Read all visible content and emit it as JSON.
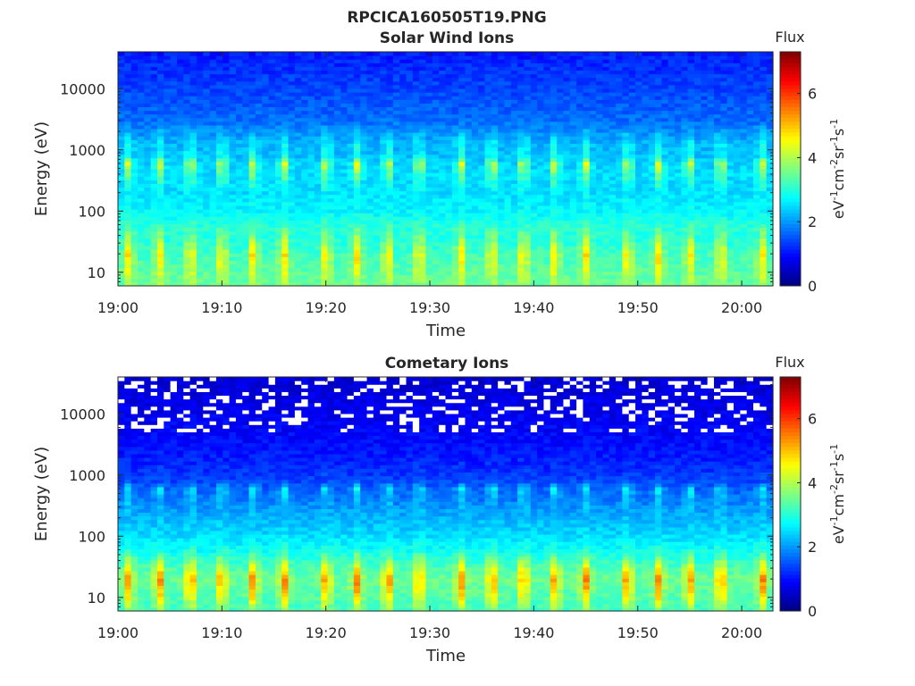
{
  "figure_title": "RPCICA160505T19.PNG",
  "chart_data": [
    {
      "type": "heatmap",
      "title": "Solar Wind Ions",
      "xlabel": "Time",
      "ylabel": "Energy (eV)",
      "x_ticks": [
        "19:00",
        "19:10",
        "19:20",
        "19:30",
        "19:40",
        "19:50",
        "20:00"
      ],
      "x_range": [
        "19:00",
        "20:03"
      ],
      "y_scale": "log",
      "y_ticks": [
        10,
        100,
        1000,
        10000
      ],
      "y_tick_labels": [
        "10",
        "100",
        "1000",
        "10000"
      ],
      "y_range": [
        6,
        40000
      ],
      "colorbar": {
        "title": "Flux",
        "label": "eV-1cm-2sr-1s-1",
        "range": [
          0,
          7.3
        ],
        "ticks": [
          0,
          2,
          4,
          6
        ],
        "tick_labels": [
          "0",
          "2",
          "4",
          "6"
        ],
        "colormap": "jet"
      },
      "pulse_times": [
        "19:01",
        "19:04",
        "19:07",
        "19:10",
        "19:13",
        "19:16",
        "19:20",
        "19:23",
        "19:26",
        "19:29",
        "19:33",
        "19:36",
        "19:39",
        "19:42",
        "19:45",
        "19:49",
        "19:52",
        "19:55",
        "19:58",
        "20:02"
      ],
      "profile": {
        "energy_eV": [
          6,
          10,
          20,
          30,
          60,
          100,
          200,
          400,
          600,
          800,
          1300,
          3000,
          10000,
          40000
        ],
        "flux_background": [
          3.5,
          3.4,
          3.2,
          3.0,
          3.0,
          2.7,
          2.5,
          2.5,
          2.4,
          2.3,
          2.2,
          1.7,
          1.4,
          1.1
        ],
        "flux_pulse": [
          3.9,
          4.4,
          4.9,
          4.3,
          3.2,
          2.8,
          2.7,
          3.6,
          4.5,
          3.0,
          2.8,
          1.7,
          1.4,
          1.1
        ]
      },
      "gaps": "none"
    },
    {
      "type": "heatmap",
      "title": "Cometary Ions",
      "xlabel": "Time",
      "ylabel": "Energy (eV)",
      "x_ticks": [
        "19:00",
        "19:10",
        "19:20",
        "19:30",
        "19:40",
        "19:50",
        "20:00"
      ],
      "x_range": [
        "19:00",
        "20:03"
      ],
      "y_scale": "log",
      "y_ticks": [
        10,
        100,
        1000,
        10000
      ],
      "y_tick_labels": [
        "10",
        "100",
        "1000",
        "10000"
      ],
      "y_range": [
        6,
        40000
      ],
      "colorbar": {
        "title": "Flux",
        "label": "eV-1cm-2sr-1s-1",
        "range": [
          0,
          7.3
        ],
        "ticks": [
          0,
          2,
          4,
          6
        ],
        "tick_labels": [
          "0",
          "2",
          "4",
          "6"
        ],
        "colormap": "jet"
      },
      "pulse_times": [
        "19:01",
        "19:04",
        "19:07",
        "19:10",
        "19:13",
        "19:16",
        "19:20",
        "19:23",
        "19:26",
        "19:29",
        "19:33",
        "19:36",
        "19:39",
        "19:42",
        "19:45",
        "19:49",
        "19:52",
        "19:55",
        "19:58",
        "20:02"
      ],
      "profile": {
        "energy_eV": [
          6,
          10,
          20,
          30,
          60,
          100,
          200,
          400,
          600,
          800,
          1300,
          3000,
          10000,
          40000
        ],
        "flux_background": [
          3.2,
          3.3,
          3.5,
          3.3,
          2.8,
          2.5,
          2.2,
          1.8,
          1.6,
          1.4,
          1.2,
          1.0,
          0.8,
          0.6
        ],
        "flux_pulse": [
          3.8,
          4.9,
          5.6,
          4.8,
          3.1,
          2.6,
          2.3,
          2.3,
          2.8,
          1.5,
          1.3,
          1.0,
          0.8,
          0.6
        ]
      },
      "gaps": "frequent empty cells above ~5000 eV"
    }
  ]
}
